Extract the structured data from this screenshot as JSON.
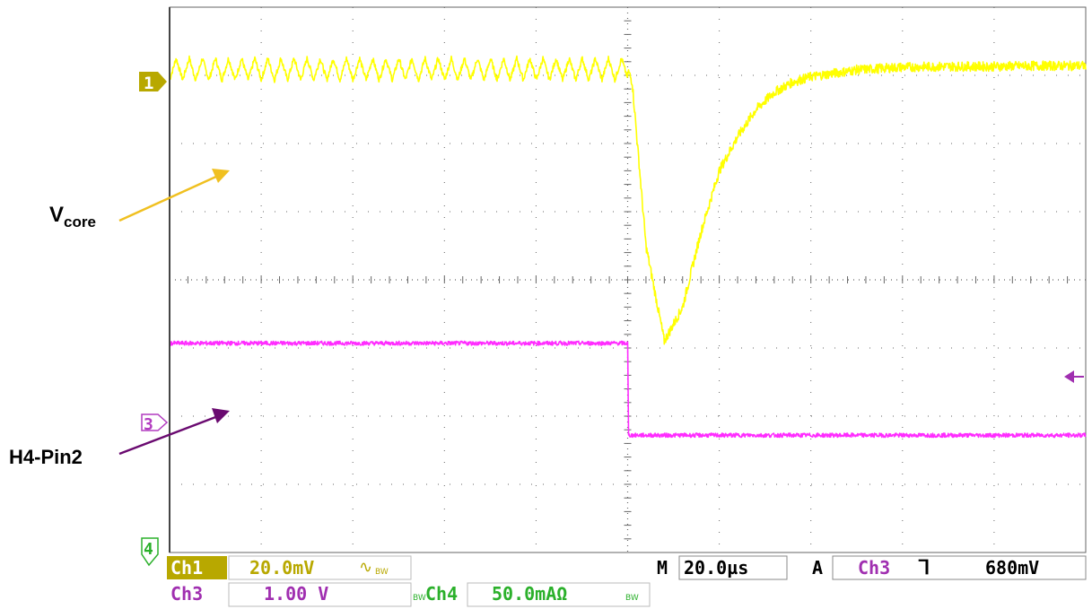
{
  "chart_data": {
    "type": "line",
    "title": "",
    "grid": true,
    "xlim": [
      0,
      200
    ],
    "x_unit": "µs",
    "x_divisions": 10,
    "y_divisions": 8,
    "series": [
      {
        "name": "Vcore",
        "channel": "Ch1",
        "color": "#ffff00",
        "description": "Core voltage with ripple, drops sharply at the load step then recovers",
        "x": [
          0,
          100,
          101,
          104,
          108,
          112,
          116,
          120,
          124,
          128,
          132,
          136,
          140,
          150,
          160,
          170,
          180,
          190,
          200
        ],
        "y": [
          7.09,
          7.09,
          6.9,
          4.5,
          3.1,
          3.6,
          4.7,
          5.6,
          6.1,
          6.5,
          6.75,
          6.9,
          6.98,
          7.08,
          7.12,
          7.13,
          7.13,
          7.14,
          7.14
        ]
      },
      {
        "name": "H4-Pin2",
        "channel": "Ch3",
        "color": "#ff2cff",
        "description": "Logic-level step from high to low at the trigger point",
        "x": [
          0,
          100,
          100.2,
          200
        ],
        "y": [
          3.07,
          3.07,
          1.72,
          1.72
        ]
      }
    ],
    "annotations": [
      "Vcore",
      "H4-Pin2"
    ],
    "markers": [
      "1",
      "3",
      "4"
    ]
  },
  "readouts": {
    "ch1_label": "Ch1",
    "ch1_scale": "20.0mV",
    "ch1_coupling": "∿",
    "bw": "BW",
    "ch3_label": "Ch3",
    "ch3_scale": "1.00 V",
    "ch4_label": "Ch4",
    "ch4_scale": "50.0mAΩ",
    "m_label": "M",
    "time_scale": "20.0µs",
    "a_label": "A",
    "trig_channel": "Ch3",
    "trig_slope": "⌄",
    "trig_level": "680mV"
  },
  "annotations": {
    "vcore_main": "V",
    "vcore_sub": "core",
    "h4_label": "H4-Pin2"
  },
  "markers": {
    "ch1": "1",
    "ch3": "3",
    "ch4": "4"
  },
  "colors": {
    "ch1": "#ffff00",
    "ch1_dark": "#b8a800",
    "ch3": "#ff2cff",
    "ch3_dark": "#a02fb0",
    "ch4": "#33cc33",
    "grid": "#666666"
  }
}
